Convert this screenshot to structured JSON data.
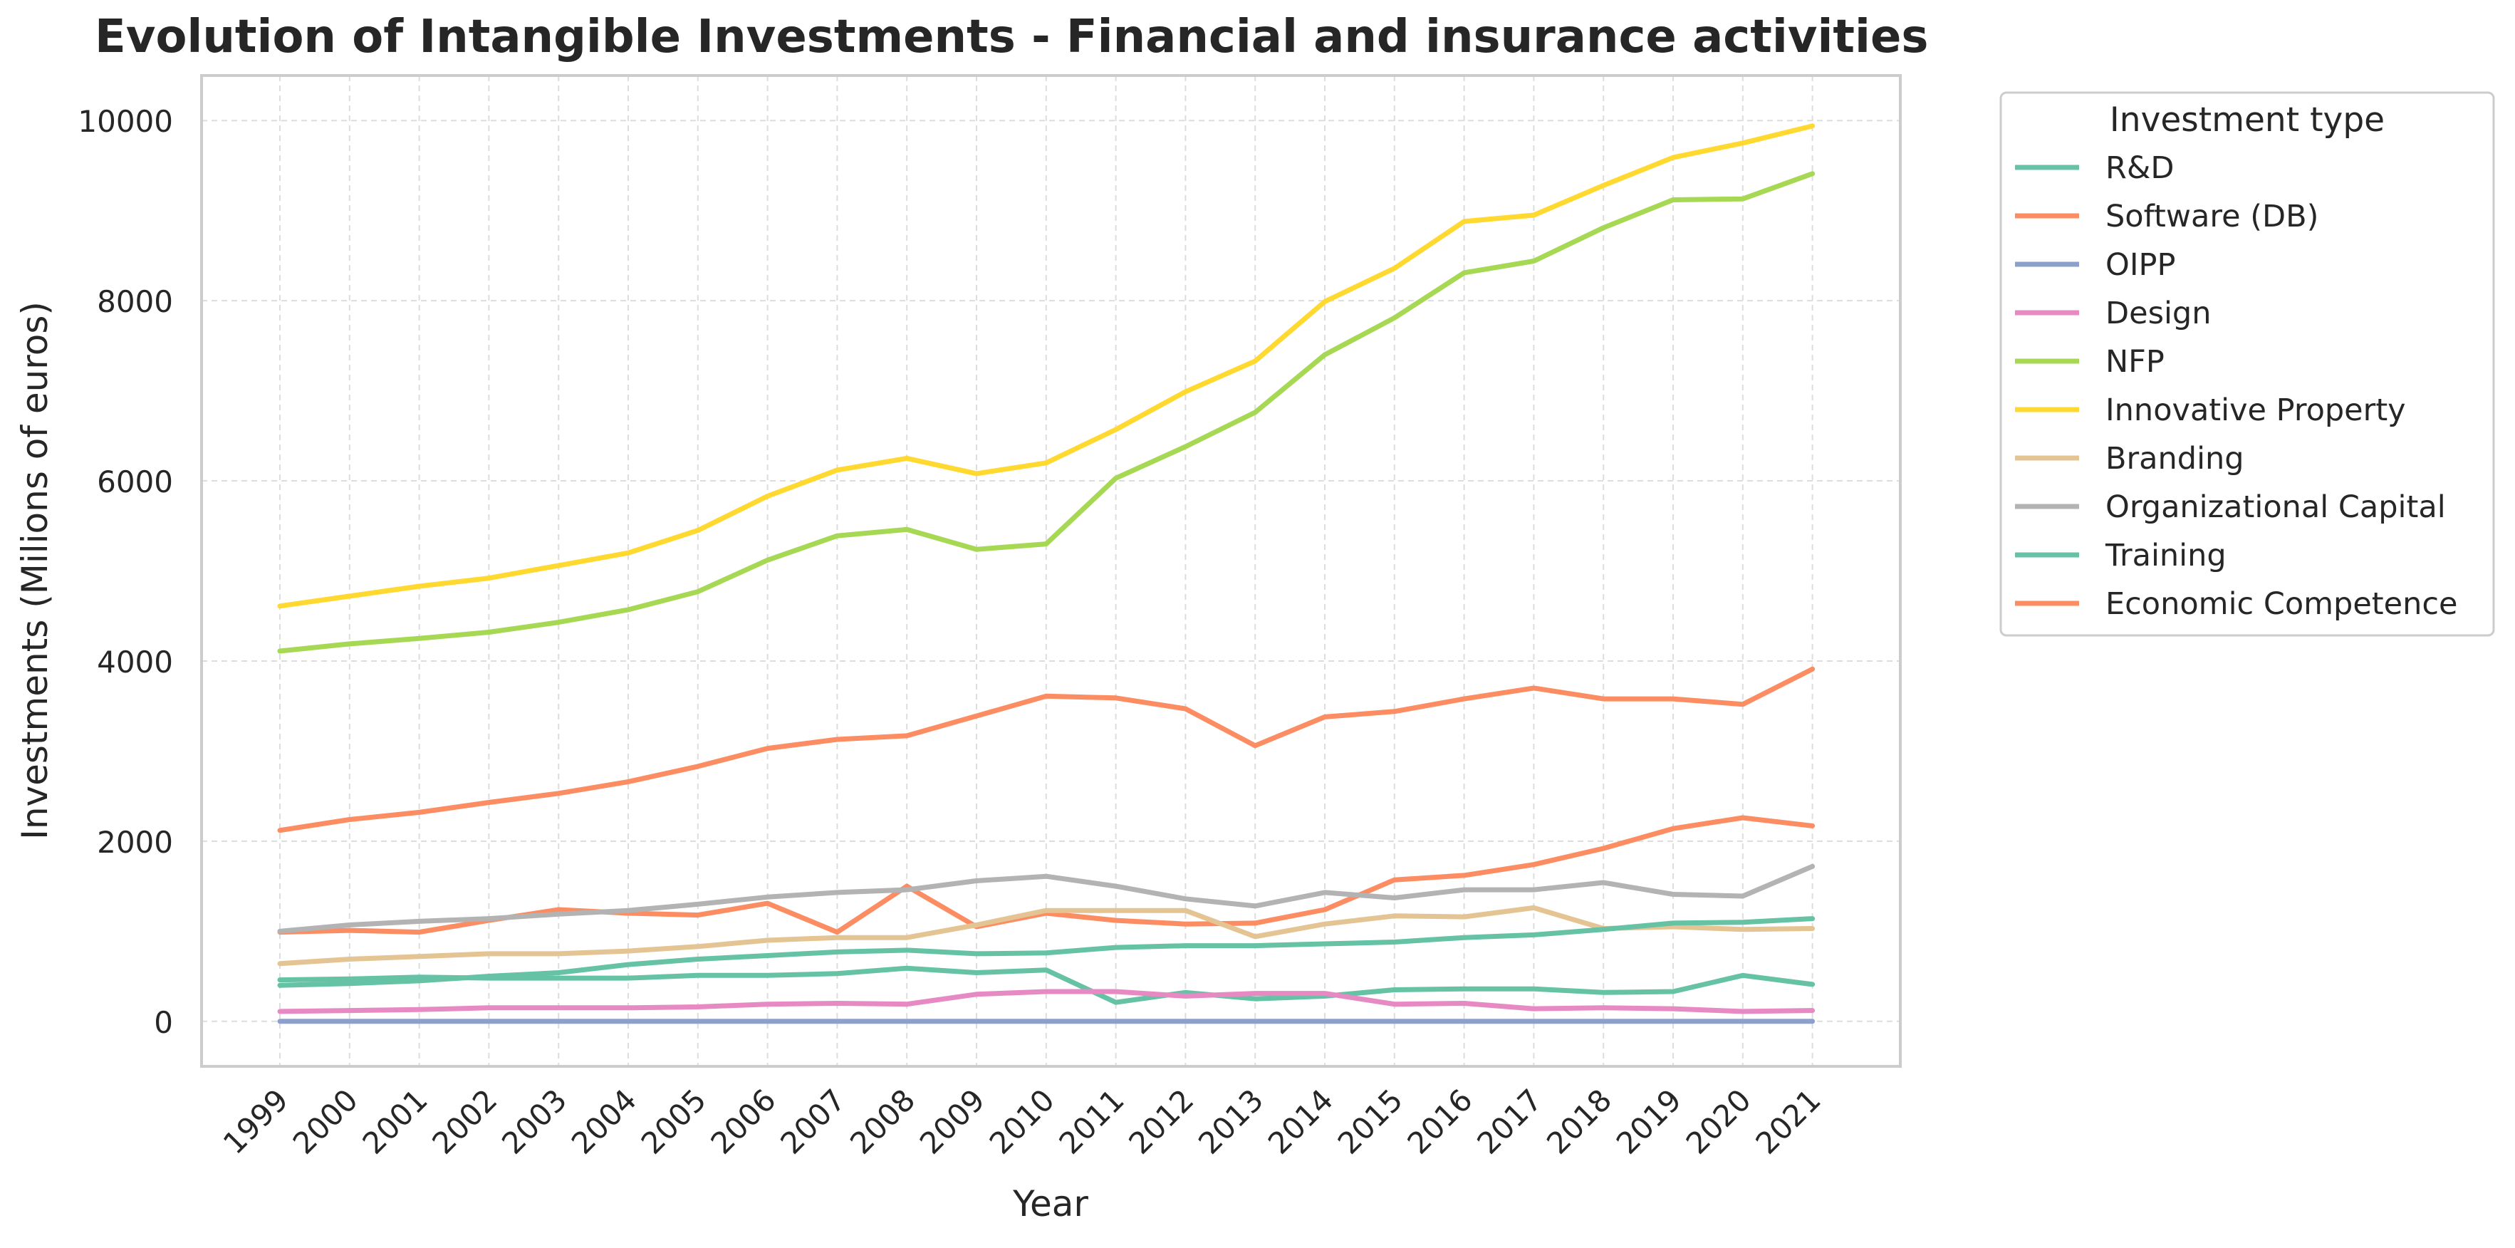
{
  "chart_data": {
    "type": "line",
    "title": "Evolution of Intangible Investments - Financial and insurance activities",
    "xlabel": "Year",
    "ylabel": "Investments (Milions of euros)",
    "x": [
      "1999",
      "2000",
      "2001",
      "2002",
      "2003",
      "2004",
      "2005",
      "2006",
      "2007",
      "2008",
      "2009",
      "2010",
      "2011",
      "2012",
      "2013",
      "2014",
      "2015",
      "2016",
      "2017",
      "2018",
      "2019",
      "2020",
      "2021"
    ],
    "ylim": [
      -500,
      10500
    ],
    "yticks": [
      "0",
      "2000",
      "4000",
      "6000",
      "8000",
      "10000"
    ],
    "grid": true,
    "legend": {
      "title": "Investment type",
      "placement": "outside-right"
    },
    "series": [
      {
        "name": "R&D",
        "color": "#66c2a5",
        "values": [
          460,
          470,
          490,
          480,
          480,
          480,
          510,
          510,
          530,
          590,
          540,
          570,
          210,
          320,
          250,
          280,
          350,
          360,
          360,
          320,
          330,
          510,
          410
        ]
      },
      {
        "name": "Software (DB)",
        "color": "#fc8d62",
        "values": [
          990,
          1010,
          990,
          1120,
          1240,
          1200,
          1180,
          1310,
          990,
          1500,
          1050,
          1200,
          1120,
          1080,
          1090,
          1240,
          1570,
          1620,
          1740,
          1920,
          2140,
          2260,
          2170
        ]
      },
      {
        "name": "OIPP",
        "color": "#8da0cb",
        "values": [
          0,
          0,
          0,
          0,
          0,
          0,
          0,
          0,
          0,
          0,
          0,
          0,
          0,
          0,
          0,
          0,
          0,
          0,
          0,
          0,
          0,
          0,
          0
        ]
      },
      {
        "name": "Design",
        "color": "#e78ac3",
        "values": [
          110,
          120,
          130,
          150,
          150,
          150,
          160,
          190,
          200,
          190,
          300,
          330,
          330,
          280,
          310,
          310,
          190,
          200,
          140,
          150,
          140,
          110,
          120
        ]
      },
      {
        "name": "NFP",
        "color": "#a6d854",
        "values": [
          4110,
          4190,
          4250,
          4320,
          4430,
          4570,
          4770,
          5120,
          5390,
          5460,
          5240,
          5300,
          6030,
          6380,
          6760,
          7400,
          7810,
          8310,
          8440,
          8810,
          9120,
          9130,
          9410
        ]
      },
      {
        "name": "Innovative Property",
        "color": "#ffd92f",
        "values": [
          4610,
          4720,
          4830,
          4920,
          5060,
          5200,
          5450,
          5830,
          6120,
          6250,
          6080,
          6200,
          6570,
          6990,
          7330,
          7990,
          8360,
          8880,
          8950,
          9280,
          9590,
          9750,
          9940
        ]
      },
      {
        "name": "Branding",
        "color": "#e5c494",
        "values": [
          640,
          690,
          720,
          750,
          750,
          780,
          830,
          900,
          930,
          930,
          1070,
          1230,
          1230,
          1230,
          940,
          1080,
          1170,
          1160,
          1260,
          1030,
          1050,
          1020,
          1030
        ]
      },
      {
        "name": "Organizational Capital",
        "color": "#b3b3b3",
        "values": [
          1000,
          1070,
          1110,
          1140,
          1190,
          1230,
          1300,
          1380,
          1430,
          1460,
          1560,
          1610,
          1500,
          1360,
          1280,
          1430,
          1370,
          1460,
          1460,
          1540,
          1410,
          1390,
          1720
        ]
      },
      {
        "name": "Training",
        "color": "#66c2a5",
        "values": [
          400,
          420,
          450,
          500,
          540,
          630,
          690,
          730,
          770,
          790,
          750,
          760,
          820,
          840,
          840,
          860,
          880,
          930,
          960,
          1020,
          1090,
          1100,
          1140
        ]
      },
      {
        "name": "Economic Competence",
        "color": "#fc8d62",
        "values": [
          2120,
          2240,
          2320,
          2430,
          2530,
          2660,
          2830,
          3030,
          3130,
          3170,
          3390,
          3610,
          3590,
          3470,
          3060,
          3380,
          3440,
          3580,
          3700,
          3580,
          3580,
          3520,
          3910
        ]
      }
    ]
  }
}
